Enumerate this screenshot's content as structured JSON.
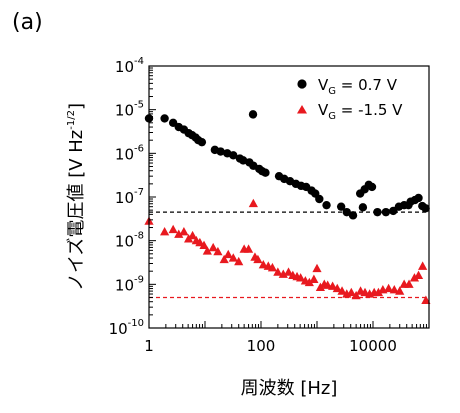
{
  "panel_label": "(a)",
  "chart_data": {
    "type": "scatter",
    "title": "",
    "xlabel": "周波数 [Hz]",
    "ylabel_main": "ノイズ電圧値 [V Hz",
    "ylabel_exp": "-1/2",
    "ylabel_end": "]",
    "x_scale": "log",
    "y_scale": "log",
    "xlim": [
      1,
      100000
    ],
    "ylim": [
      1e-10,
      0.0001
    ],
    "grid": false,
    "legend_position": "top-right",
    "x_ticks": [
      {
        "value": 1,
        "label": "1"
      },
      {
        "value": 100,
        "label": "100"
      },
      {
        "value": 10000,
        "label": "10000"
      }
    ],
    "y_ticks": [
      {
        "value": 0.0001,
        "base": "10",
        "exp": "-4"
      },
      {
        "value": 1e-05,
        "base": "10",
        "exp": "-5"
      },
      {
        "value": 1e-06,
        "base": "10",
        "exp": "-6"
      },
      {
        "value": 1e-07,
        "base": "10",
        "exp": "-7"
      },
      {
        "value": 1e-08,
        "base": "10",
        "exp": "-8"
      },
      {
        "value": 1e-09,
        "base": "10",
        "exp": "-9"
      },
      {
        "value": 1e-10,
        "base": "10",
        "exp": "-10"
      }
    ],
    "series": [
      {
        "legend_main": "V",
        "legend_sub": "G",
        "legend_value": " =  0.7 V",
        "marker": "circle",
        "color": "#000000",
        "points": [
          [
            1.0,
            6.3e-06
          ],
          [
            1.9,
            6.3e-06
          ],
          [
            2.7,
            5e-06
          ],
          [
            3.4,
            4e-06
          ],
          [
            4.2,
            3.5e-06
          ],
          [
            5.1,
            2.9e-06
          ],
          [
            5.9,
            2.6e-06
          ],
          [
            6.8,
            2.3e-06
          ],
          [
            7.6,
            2e-06
          ],
          [
            8.8,
            1.8e-06
          ],
          [
            15,
            1.2e-06
          ],
          [
            19,
            1.1e-06
          ],
          [
            25,
            1e-06
          ],
          [
            32,
            9e-07
          ],
          [
            42,
            7.6e-07
          ],
          [
            48,
            6.9e-07
          ],
          [
            62,
            6.2e-07
          ],
          [
            73,
            5.2e-07
          ],
          [
            93,
            4.4e-07
          ],
          [
            105,
            3.9e-07
          ],
          [
            120,
            3.6e-07
          ],
          [
            72,
            7.8e-06
          ],
          [
            210,
            3e-07
          ],
          [
            260,
            2.6e-07
          ],
          [
            330,
            2.3e-07
          ],
          [
            420,
            2e-07
          ],
          [
            520,
            1.8e-07
          ],
          [
            640,
            1.7e-07
          ],
          [
            800,
            1.4e-07
          ],
          [
            930,
            1.2e-07
          ],
          [
            1100,
            9e-08
          ],
          [
            1480,
            6.5e-08
          ],
          [
            2700,
            6e-08
          ],
          [
            3400,
            4.5e-08
          ],
          [
            4400,
            3.8e-08
          ],
          [
            5900,
            1.2e-07
          ],
          [
            6600,
            5.8e-08
          ],
          [
            7100,
            1.5e-07
          ],
          [
            8400,
            1.9e-07
          ],
          [
            9600,
            1.7e-07
          ],
          [
            12000,
            4.5e-08
          ],
          [
            17000,
            4.5e-08
          ],
          [
            23000,
            4.8e-08
          ],
          [
            29000,
            6e-08
          ],
          [
            36000,
            6.5e-08
          ],
          [
            43000,
            6.5e-08
          ],
          [
            47000,
            7.8e-08
          ],
          [
            56000,
            8.5e-08
          ],
          [
            65000,
            9.5e-08
          ],
          [
            76000,
            6.2e-08
          ],
          [
            87000,
            5.5e-08
          ]
        ]
      },
      {
        "legend_main": "V",
        "legend_sub": "G",
        "legend_value": " = -1.5 V",
        "marker": "triangle",
        "color": "#e8191f",
        "points": [
          [
            1.0,
            2.8e-08
          ],
          [
            1.9,
            1.6e-08
          ],
          [
            2.7,
            1.8e-08
          ],
          [
            3.4,
            1.4e-08
          ],
          [
            4.2,
            1.6e-08
          ],
          [
            5.1,
            1.1e-08
          ],
          [
            6.0,
            1.3e-08
          ],
          [
            7.0,
            1e-08
          ],
          [
            8.1,
            9e-09
          ],
          [
            9.6,
            7.8e-09
          ],
          [
            11,
            5.8e-09
          ],
          [
            14,
            6.9e-09
          ],
          [
            17,
            5.6e-09
          ],
          [
            22,
            3.7e-09
          ],
          [
            26,
            4.8e-09
          ],
          [
            32,
            4e-09
          ],
          [
            40,
            3.3e-09
          ],
          [
            50,
            6.4e-09
          ],
          [
            60,
            6.4e-09
          ],
          [
            73,
            7.1e-08
          ],
          [
            78,
            4.2e-09
          ],
          [
            88,
            3.7e-09
          ],
          [
            110,
            2.8e-09
          ],
          [
            135,
            2.6e-09
          ],
          [
            160,
            2.4e-09
          ],
          [
            200,
            1.9e-09
          ],
          [
            250,
            1.7e-09
          ],
          [
            310,
            1.9e-09
          ],
          [
            370,
            1.6e-09
          ],
          [
            440,
            1.5e-09
          ],
          [
            510,
            1.4e-09
          ],
          [
            620,
            1.2e-09
          ],
          [
            730,
            1.1e-09
          ],
          [
            880,
            1.3e-09
          ],
          [
            1000,
            2.3e-09
          ],
          [
            1150,
            8.5e-10
          ],
          [
            1350,
            1e-09
          ],
          [
            1550,
            9.5e-10
          ],
          [
            1900,
            9e-10
          ],
          [
            2300,
            8e-10
          ],
          [
            2800,
            7e-10
          ],
          [
            3400,
            6e-10
          ],
          [
            4100,
            6.5e-10
          ],
          [
            5000,
            5.5e-10
          ],
          [
            6000,
            7e-10
          ],
          [
            7200,
            6.5e-10
          ],
          [
            8700,
            6e-10
          ],
          [
            10500,
            6.5e-10
          ],
          [
            12500,
            6.5e-10
          ],
          [
            15000,
            7.5e-10
          ],
          [
            19000,
            8e-10
          ],
          [
            24000,
            7.5e-10
          ],
          [
            30000,
            7e-10
          ],
          [
            36000,
            1e-09
          ],
          [
            44000,
            1e-09
          ],
          [
            55000,
            1.4e-09
          ],
          [
            65000,
            1.6e-09
          ],
          [
            77000,
            2.6e-09
          ],
          [
            88000,
            4.3e-10
          ]
        ]
      }
    ],
    "reference_lines": [
      {
        "y": 4.5e-08,
        "color": "#000000",
        "style": "dashed"
      },
      {
        "y": 5e-10,
        "color": "#e8191f",
        "style": "dashed"
      }
    ]
  }
}
